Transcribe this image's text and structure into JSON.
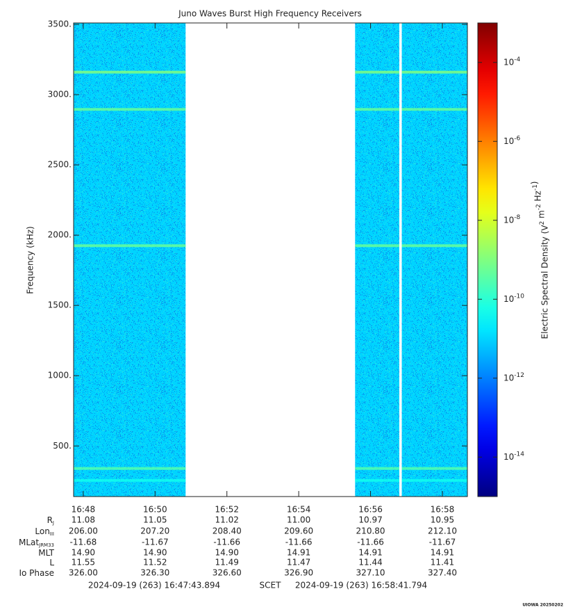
{
  "chart_data": {
    "type": "spectrogram",
    "title": "Juno Waves Burst High Frequency Receivers",
    "ylabel": "Frequency (kHz)",
    "ylim": [
      140,
      3510
    ],
    "yticks": [
      {
        "value": 500,
        "label": "500."
      },
      {
        "value": 1000,
        "label": "1000."
      },
      {
        "value": 1500,
        "label": "1500."
      },
      {
        "value": 2000,
        "label": "2000."
      },
      {
        "value": 2500,
        "label": "2500."
      },
      {
        "value": 3000,
        "label": "3000."
      },
      {
        "value": 3500,
        "label": "3500."
      }
    ],
    "xlim": [
      1007.7316,
      1018.6966
    ],
    "xticks": [
      {
        "value": 1008,
        "label": "16:48"
      },
      {
        "value": 1010,
        "label": "16:50"
      },
      {
        "value": 1012,
        "label": "16:52"
      },
      {
        "value": 1014,
        "label": "16:54"
      },
      {
        "value": 1016,
        "label": "16:56"
      },
      {
        "value": 1018,
        "label": "16:58"
      }
    ],
    "segments": [
      {
        "x": [
          1007.7316,
          1010.85
        ],
        "value": 1e-11
      },
      {
        "x": [
          1015.57,
          1016.8
        ],
        "value": 1e-11
      },
      {
        "x": [
          1016.87,
          1018.6966
        ],
        "value": 1e-11
      }
    ],
    "lines": [
      {
        "frequency": 3160,
        "value": 1e-09
      },
      {
        "frequency": 2895,
        "value": 5e-10
      },
      {
        "frequency": 1925,
        "value": 5e-10
      },
      {
        "frequency": 340,
        "value": 3e-10
      },
      {
        "frequency": 255,
        "value": 5e-11
      }
    ],
    "colorbar": {
      "label": "Electric Spectral Density (V2 m-2 Hz-1)",
      "log": true,
      "lim": [
        1e-15,
        0.001
      ],
      "ticks": [
        {
          "value": 1e-14,
          "label": "10-14"
        },
        {
          "value": 1e-12,
          "label": "10-12"
        },
        {
          "value": 1e-10,
          "label": "10-10"
        },
        {
          "value": 1e-08,
          "label": "10-8"
        },
        {
          "value": 1e-06,
          "label": "10-6"
        },
        {
          "value": 0.0001,
          "label": "10-4"
        }
      ]
    },
    "ephemeris": {
      "rows": [
        {
          "label": "R",
          "sub": "J",
          "values": [
            "11.08",
            "11.05",
            "11.02",
            "11.00",
            "10.97",
            "10.95"
          ]
        },
        {
          "label": "Lon",
          "sub": "III",
          "values": [
            "206.00",
            "207.20",
            "208.40",
            "209.60",
            "210.80",
            "212.10"
          ]
        },
        {
          "label": "MLat",
          "sub": "JRM33",
          "values": [
            "-11.68",
            "-11.67",
            "-11.66",
            "-11.66",
            "-11.66",
            "-11.67"
          ]
        },
        {
          "label": "MLT",
          "values": [
            "14.90",
            "14.90",
            "14.90",
            "14.91",
            "14.91",
            "14.91"
          ]
        },
        {
          "label": "L",
          "values": [
            "11.55",
            "11.52",
            "11.49",
            "11.47",
            "11.44",
            "11.41"
          ]
        },
        {
          "label": "Io Phase",
          "values": [
            "326.00",
            "326.30",
            "326.60",
            "326.90",
            "327.10",
            "327.40"
          ]
        }
      ]
    },
    "footer": {
      "start": "2024-09-19 (263) 16:47:43.894",
      "system": "SCET",
      "end": "2024-09-19 (263) 16:58:41.794"
    },
    "credit": "UIOWA 20250202"
  }
}
